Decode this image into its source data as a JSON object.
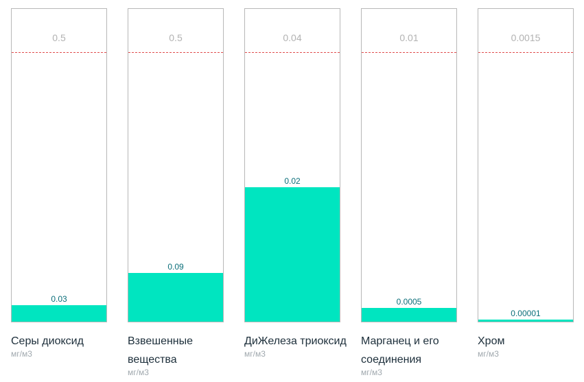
{
  "chart_data": {
    "type": "bar",
    "bar_color": "#00e5c0",
    "limit_line_color": "#e04b4b",
    "value_label_color": "#0a6e79",
    "items": [
      {
        "name": "Серы диоксид",
        "limit": 0.5,
        "limit_label": "0.5",
        "value": 0.03,
        "value_label": "0.03",
        "unit": "мг/м3"
      },
      {
        "name": "Взвешенные вещества",
        "limit": 0.5,
        "limit_label": "0.5",
        "value": 0.09,
        "value_label": "0.09",
        "unit": "мг/м3"
      },
      {
        "name": "ДиЖелеза триоксид",
        "limit": 0.04,
        "limit_label": "0.04",
        "value": 0.02,
        "value_label": "0.02",
        "unit": "мг/м3"
      },
      {
        "name": "Марганец и его соединения",
        "limit": 0.01,
        "limit_label": "0.01",
        "value": 0.0005,
        "value_label": "0.0005",
        "unit": "мг/м3"
      },
      {
        "name": "Хром",
        "limit": 0.0015,
        "limit_label": "0.0015",
        "value": 1e-05,
        "value_label": "0.00001",
        "unit": "мг/м3"
      }
    ]
  }
}
